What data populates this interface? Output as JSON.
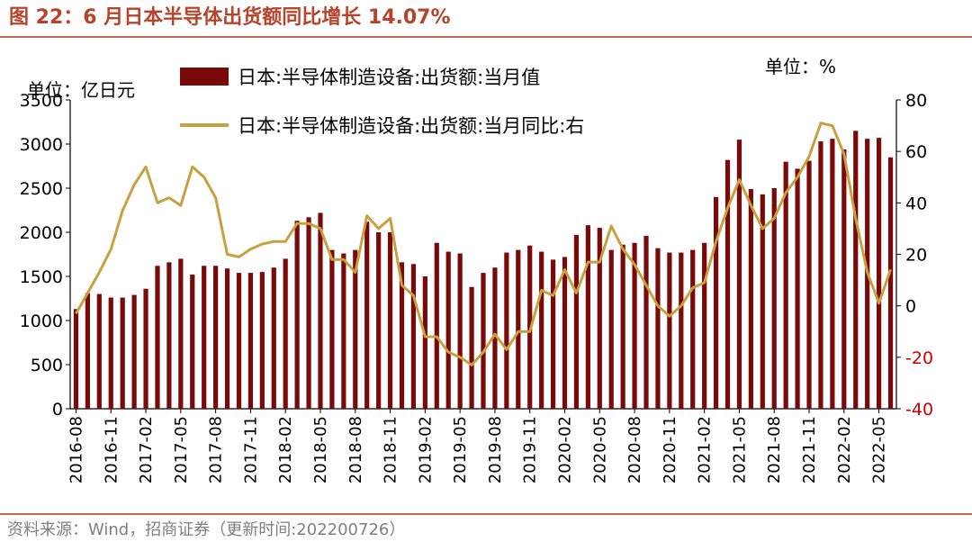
{
  "title": "图 22：6 月日本半导体出货额同比增长 14.07%",
  "source": "资料来源：Wind，招商证券（更新时间:202200726）",
  "colors": {
    "bar": "#7a0a0a",
    "line": "#c8a040",
    "title": "#b8432b",
    "right_axis": "#cc0000"
  },
  "chart_data": {
    "type": "bar+line",
    "units": {
      "left": "单位：亿日元",
      "right": "单位：%"
    },
    "legend": [
      "日本:半导体制造设备:出货额:当月值",
      "日本:半导体制造设备:出货额:当月同比:右"
    ],
    "y_left": {
      "min": 0,
      "max": 3500,
      "ticks": [
        "0",
        "500",
        "1000",
        "1500",
        "2000",
        "2500",
        "3000",
        "3500"
      ]
    },
    "y_right": {
      "min": -40,
      "max": 80,
      "ticks": [
        "-40",
        "-20",
        "0",
        "20",
        "40",
        "60",
        "80"
      ]
    },
    "x_ticks": [
      "2016-08",
      "2016-11",
      "2017-02",
      "2017-05",
      "2017-08",
      "2017-11",
      "2018-02",
      "2018-05",
      "2018-08",
      "2018-11",
      "2019-02",
      "2019-05",
      "2019-08",
      "2019-11",
      "2020-02",
      "2020-05",
      "2020-08",
      "2020-11",
      "2021-02",
      "2021-05",
      "2021-08",
      "2021-11",
      "2022-02",
      "2022-05"
    ],
    "series": [
      {
        "name": "日本:半导体制造设备:出货额:当月值",
        "axis": "left",
        "type": "bar",
        "values": [
          1130,
          1310,
          1300,
          1260,
          1260,
          1290,
          1360,
          1620,
          1660,
          1700,
          1520,
          1620,
          1620,
          1590,
          1540,
          1540,
          1550,
          1600,
          1700,
          2130,
          2170,
          2220,
          1800,
          1760,
          1800,
          2120,
          2000,
          2000,
          1660,
          1640,
          1500,
          1880,
          1780,
          1760,
          1380,
          1540,
          1600,
          1770,
          1800,
          1850,
          1780,
          1690,
          1720,
          1970,
          2080,
          2050,
          1800,
          1860,
          1880,
          1960,
          1820,
          1770,
          1770,
          1800,
          1880,
          2400,
          2820,
          3050,
          2490,
          2430,
          2500,
          2800,
          2720,
          2810,
          3030,
          3060,
          2940,
          3150,
          3060,
          3070,
          2850
        ]
      },
      {
        "name": "日本:半导体制造设备:出货额:当月同比:右",
        "axis": "right",
        "type": "line",
        "values": [
          -3,
          5,
          13,
          22,
          37,
          47,
          54,
          40,
          42,
          39,
          54,
          50,
          42,
          20,
          19,
          22,
          24,
          25,
          25,
          32,
          32,
          30,
          18,
          18,
          13,
          35,
          30,
          34,
          8,
          4,
          -12,
          -12,
          -18,
          -20,
          -23,
          -18,
          -11,
          -17,
          -10,
          -10,
          6,
          4,
          14,
          5,
          17,
          17,
          31,
          22,
          16,
          8,
          0,
          -4,
          0,
          7,
          9,
          25,
          38,
          49,
          39,
          30,
          34,
          44,
          50,
          58,
          71,
          70,
          59,
          34,
          13,
          1,
          14.07
        ]
      }
    ]
  }
}
